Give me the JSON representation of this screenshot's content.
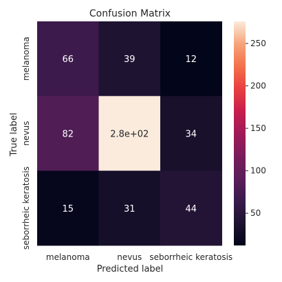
{
  "chart_data": {
    "type": "heatmap",
    "title": "Confusion Matrix",
    "xlabel": "Predicted label",
    "ylabel": "True label",
    "x_categories": [
      "melanoma",
      "nevus",
      "seborrheic keratosis"
    ],
    "y_categories": [
      "melanoma",
      "nevus",
      "seborrheic keratosis"
    ],
    "values": [
      [
        66,
        39,
        12
      ],
      [
        82,
        276,
        34
      ],
      [
        15,
        31,
        44
      ]
    ],
    "cell_labels": [
      [
        "66",
        "39",
        "12"
      ],
      [
        "82",
        "2.8e+02",
        "34"
      ],
      [
        "15",
        "31",
        "44"
      ]
    ],
    "colorbar": {
      "range": [
        12,
        276
      ],
      "ticks": [
        50,
        100,
        150,
        200,
        250
      ],
      "tick_labels": [
        "50",
        "100",
        "150",
        "200",
        "250"
      ]
    },
    "colormap": "rocket",
    "grid": false
  }
}
